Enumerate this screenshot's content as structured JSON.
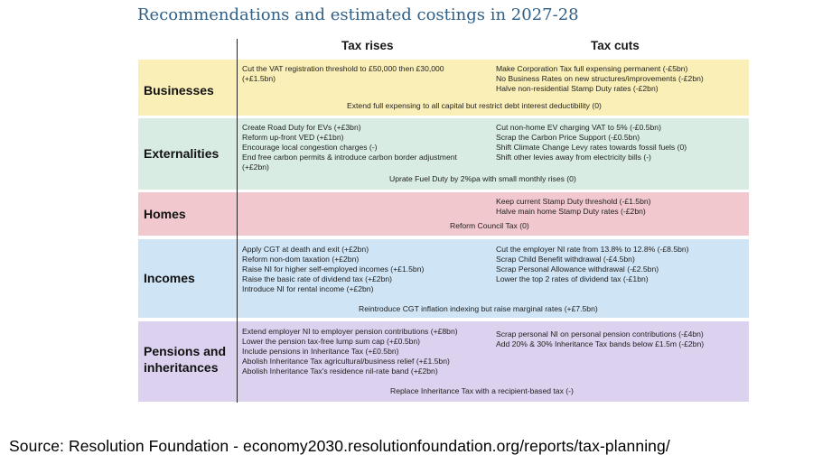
{
  "title": "Recommendations and estimated costings in 2027-28",
  "columns": {
    "rises": "Tax rises",
    "cuts": "Tax cuts"
  },
  "colors": {
    "businesses": "#fbefb8",
    "externalities": "#d8ece4",
    "homes": "#f0c8cd",
    "incomes": "#cfe4f5",
    "pensions": "#dcd1ee",
    "title": "#2f5f86"
  },
  "rows": [
    {
      "label": "Businesses",
      "rises": [
        "Cut the VAT registration threshold to £50,000 then £30,000",
        "(+£1.5bn)"
      ],
      "cuts": [
        "Make Corporation Tax full expensing permanent (-£5bn)",
        "No Business Rates on new structures/improvements (-£2bn)",
        "Halve non-residential Stamp Duty rates (-£2bn)"
      ],
      "span": "Extend full expensing to all capital but restrict debt interest deductibility (0)"
    },
    {
      "label": "Externalities",
      "rises": [
        "Create Road Duty for EVs (+£3bn)",
        "Reform up-front VED (+£1bn)",
        "Encourage local congestion charges (-)",
        "End free carbon permits & introduce carbon border adjustment",
        "(+£2bn)"
      ],
      "cuts": [
        "Cut non-home EV charging VAT to 5% (-£0.5bn)",
        "Scrap the Carbon Price Support (-£0.5bn)",
        "Shift Climate Change Levy rates towards fossil fuels (0)",
        "Shift other levies away from electricity bills (-)"
      ],
      "span": "Uprate Fuel Duty by 2%pa with small monthly rises (0)"
    },
    {
      "label": "Homes",
      "rises": [],
      "cuts": [
        "Keep current Stamp Duty threshold (-£1.5bn)",
        "Halve main home Stamp Duty rates (-£2bn)"
      ],
      "span": "Reform Council Tax (0)"
    },
    {
      "label": "Incomes",
      "rises": [
        "Apply CGT at death and exit (+£2bn)",
        "Reform non-dom taxation (+£2bn)",
        "Raise NI for higher self-employed incomes (+£1.5bn)",
        "Raise the basic rate of dividend tax (+£2bn)",
        "Introduce NI for rental income (+£2bn)"
      ],
      "cuts": [
        "Cut the employer NI rate from 13.8% to 12.8% (-£8.5bn)",
        "Scrap Child Benefit withdrawal (-£4.5bn)",
        "Scrap Personal Allowance withdrawal (-£2.5bn)",
        "Lower the top 2 rates of dividend tax (-£1bn)"
      ],
      "span": "Reintroduce CGT inflation indexing but raise marginal rates (+£7.5bn)"
    },
    {
      "label": "Pensions and inheritances",
      "rises": [
        "Extend employer NI to employer pension contributions (+£8bn)",
        "Lower the pension tax-free lump sum cap (+£0.5bn)",
        "Include pensions in Inheritance Tax (+£0.5bn)",
        "Abolish Inheritance Tax agricultural/business relief (+£1.5bn)",
        "Abolish Inheritance Tax's residence nil-rate band (+£2bn)"
      ],
      "cuts": [
        "Scrap personal NI on personal pension contributions (-£4bn)",
        "Add 20% & 30% Inheritance Tax bands below £1.5m (-£2bn)"
      ],
      "span": "Replace Inheritance Tax with a recipient-based tax (-)"
    }
  ],
  "source": "Source: Resolution Foundation - economy2030.resolutionfoundation.org/reports/tax-planning/"
}
